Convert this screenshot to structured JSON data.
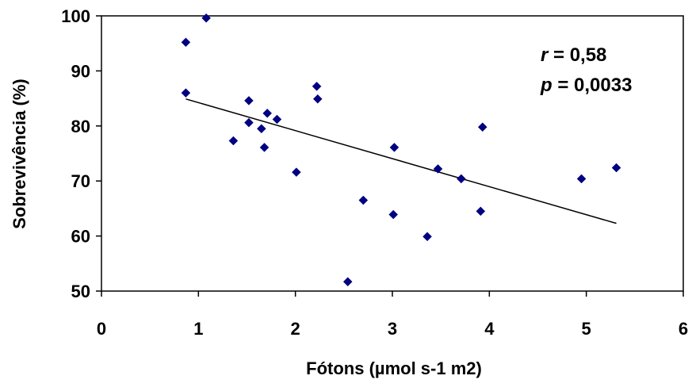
{
  "chart_data": {
    "type": "scatter",
    "xlabel": "Fótons (µmol s-1 m2)",
    "ylabel": "Sobrevivência (%)",
    "xlim": [
      0,
      6
    ],
    "ylim": [
      50,
      100
    ],
    "xticks": [
      0,
      1,
      2,
      3,
      4,
      5,
      6
    ],
    "yticks": [
      50,
      60,
      70,
      80,
      90,
      100
    ],
    "x_tick_labels": [
      "0",
      "1",
      "2",
      "3",
      "4",
      "5",
      "6"
    ],
    "y_tick_labels": [
      "50",
      "60",
      "70",
      "80",
      "90",
      "100"
    ],
    "grid": false,
    "legend": "none",
    "marker": "diamond",
    "marker_color": "#000080",
    "points": [
      {
        "x": 0.87,
        "y": 95.2
      },
      {
        "x": 1.08,
        "y": 99.6
      },
      {
        "x": 0.87,
        "y": 86.0
      },
      {
        "x": 1.52,
        "y": 84.6
      },
      {
        "x": 1.52,
        "y": 80.6
      },
      {
        "x": 1.36,
        "y": 77.3
      },
      {
        "x": 1.65,
        "y": 79.5
      },
      {
        "x": 1.71,
        "y": 82.3
      },
      {
        "x": 1.68,
        "y": 76.1
      },
      {
        "x": 1.81,
        "y": 81.2
      },
      {
        "x": 2.01,
        "y": 71.6
      },
      {
        "x": 2.22,
        "y": 87.2
      },
      {
        "x": 2.23,
        "y": 84.9
      },
      {
        "x": 2.54,
        "y": 51.7
      },
      {
        "x": 2.7,
        "y": 66.5
      },
      {
        "x": 3.01,
        "y": 63.9
      },
      {
        "x": 3.02,
        "y": 76.1
      },
      {
        "x": 3.36,
        "y": 59.9
      },
      {
        "x": 3.47,
        "y": 72.2
      },
      {
        "x": 3.71,
        "y": 70.4
      },
      {
        "x": 3.91,
        "y": 64.5
      },
      {
        "x": 3.93,
        "y": 79.8
      },
      {
        "x": 4.95,
        "y": 70.4
      },
      {
        "x": 5.31,
        "y": 72.4
      }
    ],
    "trendline": {
      "type": "linear",
      "x": [
        0.87,
        5.31
      ],
      "y": [
        84.9,
        62.3
      ],
      "color": "#000000"
    },
    "annotations": [
      {
        "var": "r",
        "text": " = 0,58"
      },
      {
        "var": "p",
        "text": " = 0,0033"
      }
    ]
  }
}
